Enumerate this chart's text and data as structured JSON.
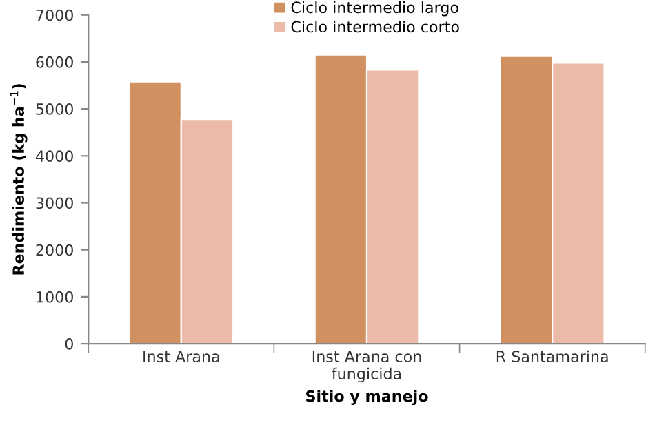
{
  "chart_data": {
    "type": "bar",
    "xlabel": "Sitio y manejo",
    "ylabel": "Rendimiento (kg ha$^{−1}$)",
    "categories": [
      "Inst Arana",
      "Inst Arana con\nfungicida",
      "R Santamarina"
    ],
    "series": [
      {
        "name": "Ciclo intermedio largo",
        "color": "#d09060",
        "values": [
          5580,
          6150,
          6120
        ]
      },
      {
        "name": "Ciclo intermedio corto",
        "color": "#ebbba8",
        "values": [
          4780,
          5830,
          5980
        ]
      }
    ],
    "ylim": [
      0,
      7000
    ],
    "yticks": [
      0,
      1000,
      2000,
      3000,
      4000,
      5000,
      6000,
      7000
    ],
    "grid": false,
    "legend": "top"
  }
}
